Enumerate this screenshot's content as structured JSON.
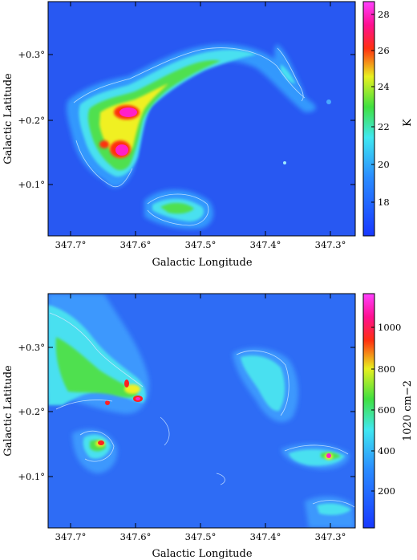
{
  "panels": [
    {
      "id": "temperature",
      "x_label": "Galactic Longitude",
      "y_label": "Galactic Latitude",
      "x_ticks": [
        "347.7°",
        "347.6°",
        "347.5°",
        "347.4°",
        "347.3°"
      ],
      "y_ticks": [
        "+0.3°",
        "+0.2°",
        "+0.1°"
      ],
      "colorbar_label": "K",
      "colorbar_ticks": [
        "28",
        "26",
        "24",
        "22",
        "20",
        "18"
      ]
    },
    {
      "id": "column-density",
      "x_label": "Galactic Longitude",
      "y_label": "Galactic Latitude",
      "x_ticks": [
        "347.7°",
        "347.6°",
        "347.5°",
        "347.4°",
        "347.3°"
      ],
      "y_ticks": [
        "+0.3°",
        "+0.2°",
        "+0.1°"
      ],
      "colorbar_label": "1020 cm−2",
      "colorbar_ticks": [
        "1000",
        "800",
        "600",
        "400",
        "200"
      ]
    }
  ],
  "colors": {
    "background_map": "#2a5cf0",
    "cold": "#2040ff",
    "cyan": "#40e0f0",
    "green": "#40e040",
    "yellow": "#f0f020",
    "red": "#ff2020",
    "magenta": "#ff20c0"
  }
}
